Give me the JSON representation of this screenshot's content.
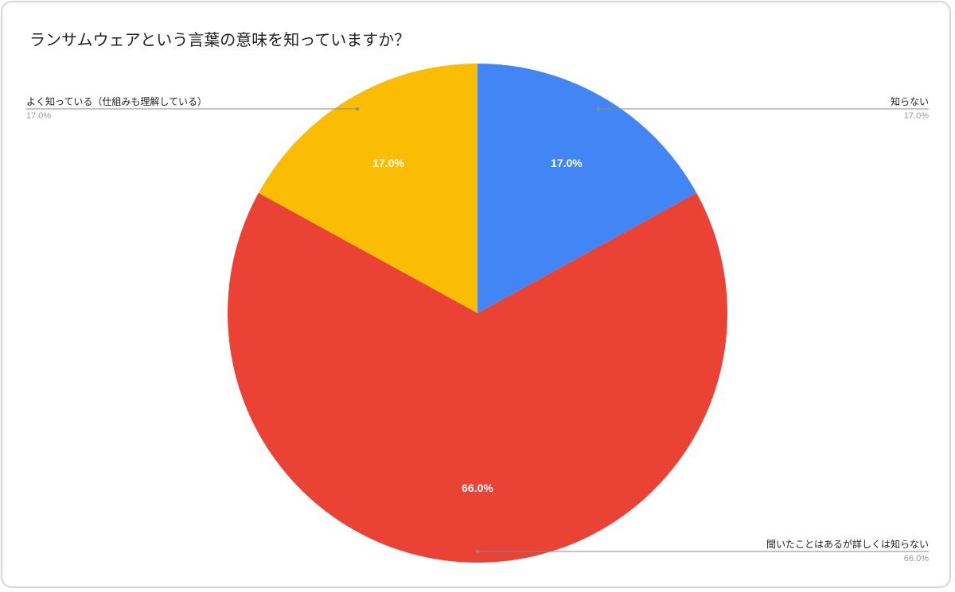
{
  "chart_data": {
    "type": "pie",
    "title": "ランサムウェアという言葉の意味を知っていますか？",
    "slices": [
      {
        "label": "知らない",
        "value": 17.0,
        "display": "17.0%",
        "color": "#4285f4"
      },
      {
        "label": "聞いたことはあるが詳しくは知らない",
        "value": 66.0,
        "display": "66.0%",
        "color": "#ea4335"
      },
      {
        "label": "よく知っている（仕組みも理解している）",
        "value": 17.0,
        "display": "17.0%",
        "color": "#fbbc04"
      }
    ],
    "start_angle_deg": 0,
    "direction": "clockwise",
    "legend": "callouts"
  }
}
